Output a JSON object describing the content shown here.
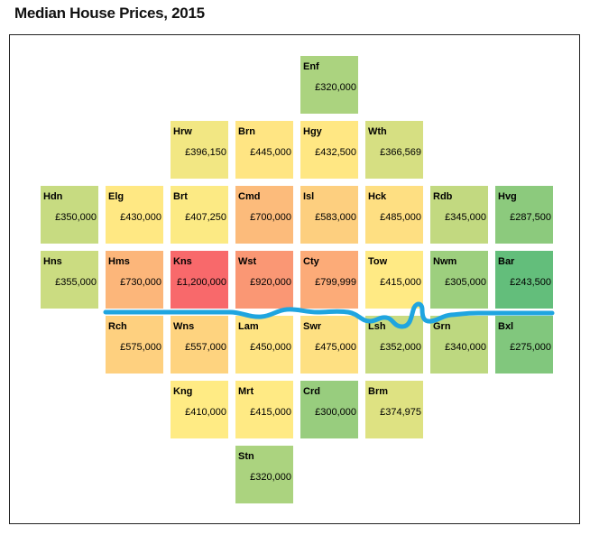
{
  "chart_data": {
    "type": "heatmap",
    "title": "Median House Prices, 2015",
    "color_scale": {
      "low": "#63be7b",
      "mid": "#ffeb84",
      "high": "#f8696b"
    },
    "river_color": "#1fa5e0",
    "tiles": [
      {
        "code": "Enf",
        "value_label": "£320,000",
        "value": 320000,
        "col": 4,
        "row": 0
      },
      {
        "code": "Hrw",
        "value_label": "£396,150",
        "value": 396150,
        "col": 2,
        "row": 1
      },
      {
        "code": "Brn",
        "value_label": "£445,000",
        "value": 445000,
        "col": 3,
        "row": 1
      },
      {
        "code": "Hgy",
        "value_label": "£432,500",
        "value": 432500,
        "col": 4,
        "row": 1
      },
      {
        "code": "Wth",
        "value_label": "£366,569",
        "value": 366569,
        "col": 5,
        "row": 1
      },
      {
        "code": "Hdn",
        "value_label": "£350,000",
        "value": 350000,
        "col": 0,
        "row": 2
      },
      {
        "code": "Elg",
        "value_label": "£430,000",
        "value": 430000,
        "col": 1,
        "row": 2
      },
      {
        "code": "Brt",
        "value_label": "£407,250",
        "value": 407250,
        "col": 2,
        "row": 2
      },
      {
        "code": "Cmd",
        "value_label": "£700,000",
        "value": 700000,
        "col": 3,
        "row": 2
      },
      {
        "code": "Isl",
        "value_label": "£583,000",
        "value": 583000,
        "col": 4,
        "row": 2
      },
      {
        "code": "Hck",
        "value_label": "£485,000",
        "value": 485000,
        "col": 5,
        "row": 2
      },
      {
        "code": "Rdb",
        "value_label": "£345,000",
        "value": 345000,
        "col": 6,
        "row": 2
      },
      {
        "code": "Hvg",
        "value_label": "£287,500",
        "value": 287500,
        "col": 7,
        "row": 2
      },
      {
        "code": "Hns",
        "value_label": "£355,000",
        "value": 355000,
        "col": 0,
        "row": 3
      },
      {
        "code": "Hms",
        "value_label": "£730,000",
        "value": 730000,
        "col": 1,
        "row": 3
      },
      {
        "code": "Kns",
        "value_label": "£1,200,000",
        "value": 1200000,
        "col": 2,
        "row": 3
      },
      {
        "code": "Wst",
        "value_label": "£920,000",
        "value": 920000,
        "col": 3,
        "row": 3
      },
      {
        "code": "Cty",
        "value_label": "£799,999",
        "value": 799999,
        "col": 4,
        "row": 3
      },
      {
        "code": "Tow",
        "value_label": "£415,000",
        "value": 415000,
        "col": 5,
        "row": 3
      },
      {
        "code": "Nwm",
        "value_label": "£305,000",
        "value": 305000,
        "col": 6,
        "row": 3
      },
      {
        "code": "Bar",
        "value_label": "£243,500",
        "value": 243500,
        "col": 7,
        "row": 3
      },
      {
        "code": "Rch",
        "value_label": "£575,000",
        "value": 575000,
        "col": 1,
        "row": 4
      },
      {
        "code": "Wns",
        "value_label": "£557,000",
        "value": 557000,
        "col": 2,
        "row": 4
      },
      {
        "code": "Lam",
        "value_label": "£450,000",
        "value": 450000,
        "col": 3,
        "row": 4
      },
      {
        "code": "Swr",
        "value_label": "£475,000",
        "value": 475000,
        "col": 4,
        "row": 4
      },
      {
        "code": "Lsh",
        "value_label": "£352,000",
        "value": 352000,
        "col": 5,
        "row": 4
      },
      {
        "code": "Grn",
        "value_label": "£340,000",
        "value": 340000,
        "col": 6,
        "row": 4
      },
      {
        "code": "Bxl",
        "value_label": "£275,000",
        "value": 275000,
        "col": 7,
        "row": 4
      },
      {
        "code": "Kng",
        "value_label": "£410,000",
        "value": 410000,
        "col": 2,
        "row": 5
      },
      {
        "code": "Mrt",
        "value_label": "£415,000",
        "value": 415000,
        "col": 3,
        "row": 5
      },
      {
        "code": "Crd",
        "value_label": "£300,000",
        "value": 300000,
        "col": 4,
        "row": 5
      },
      {
        "code": "Brm",
        "value_label": "£374,975",
        "value": 374975,
        "col": 5,
        "row": 5
      },
      {
        "code": "Stn",
        "value_label": "£320,000",
        "value": 320000,
        "col": 3,
        "row": 6
      }
    ]
  }
}
